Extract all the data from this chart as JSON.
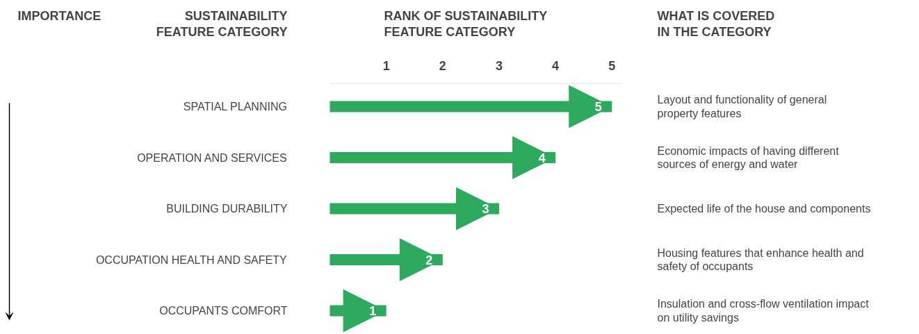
{
  "chart_data": {
    "type": "bar",
    "orientation": "horizontal",
    "categories": [
      "SPATIAL PLANNING",
      "OPERATION AND SERVICES",
      "BUILDING DURABILITY",
      "OCCUPATION HEALTH AND SAFETY",
      "OCCUPANTS COMFORT"
    ],
    "values": [
      5,
      4,
      3,
      2,
      1
    ],
    "color": "#2eaa5f",
    "data_labels": true,
    "xlim": [
      0,
      5.2
    ],
    "xticks": [
      1,
      2,
      3,
      4,
      5
    ],
    "grid": false,
    "xlabel": "RANK OF SUSTAINABILITY\nFEATURE CATEGORY",
    "ylabel": "SUSTAINABILITY\nFEATURE CATEGORY",
    "y2label": "WHAT IS COVERED\nIN THE CATEGORY",
    "annotations": [
      "IMPORTANCE",
      "Layout and functionality of general\nproperty features",
      "Economic impacts of having different\nsources of energy and water",
      "Expected life of the house and components",
      "Housing features that enhance health and\nsafety of occupants",
      "Insulation and cross-flow ventilation impact\non utility savings"
    ]
  }
}
